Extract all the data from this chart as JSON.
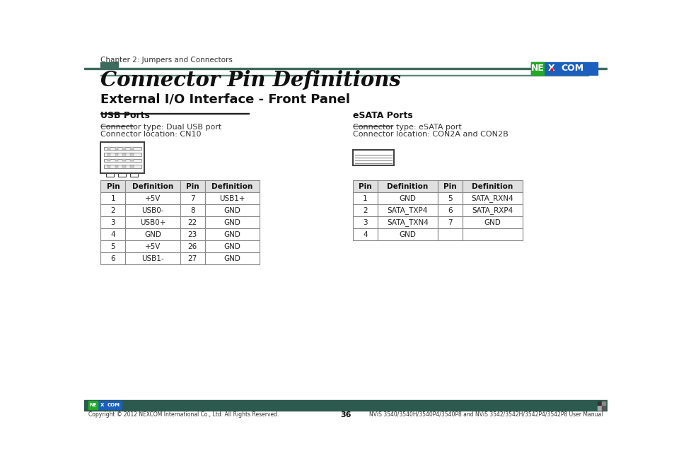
{
  "page_title": "Connector Pin Definitions",
  "section_title": "External I/O Interface - Front Panel",
  "header_text": "Chapter 2: Jumpers and Connectors",
  "footer_page": "36",
  "footer_left": "Copyright © 2012 NEXCOM International Co., Ltd. All Rights Reserved.",
  "footer_right": "NViS 3540/3540H/3540P4/3540P8 and NViS 3542/3542H/3542P4/3542P8 User Manual",
  "header_bar_color": "#3d6b5e",
  "footer_bar_color": "#2d5a4e",
  "accent_bar_color": "#5a8a7a",
  "left_section_title": "USB Ports",
  "left_connector_type": "Connector type: Dual USB port",
  "left_connector_location": "Connector location: CN10",
  "right_section_title": "eSATA Ports",
  "right_connector_type": "Connector type: eSATA port",
  "right_connector_location": "Connector location: CON2A and CON2B",
  "usb_table_headers": [
    "Pin",
    "Definition",
    "Pin",
    "Definition"
  ],
  "usb_table_data": [
    [
      "1",
      "+5V",
      "7",
      "USB1+"
    ],
    [
      "2",
      "USB0-",
      "8",
      "GND"
    ],
    [
      "3",
      "USB0+",
      "22",
      "GND"
    ],
    [
      "4",
      "GND",
      "23",
      "GND"
    ],
    [
      "5",
      "+5V",
      "26",
      "GND"
    ],
    [
      "6",
      "USB1-",
      "27",
      "GND"
    ]
  ],
  "esata_table_headers": [
    "Pin",
    "Definition",
    "Pin",
    "Definition"
  ],
  "esata_table_data": [
    [
      "1",
      "GND",
      "5",
      "SATA_RXN4"
    ],
    [
      "2",
      "SATA_TXP4",
      "6",
      "SATA_RXP4"
    ],
    [
      "3",
      "SATA_TXN4",
      "7",
      "GND"
    ],
    [
      "4",
      "GND",
      "",
      ""
    ]
  ],
  "table_header_bg": "#e0e0e0",
  "table_border_color": "#888888",
  "bg_color": "#ffffff",
  "text_color": "#222222",
  "nexcom_green": "#22aa22",
  "nexcom_blue": "#1a5fbd"
}
